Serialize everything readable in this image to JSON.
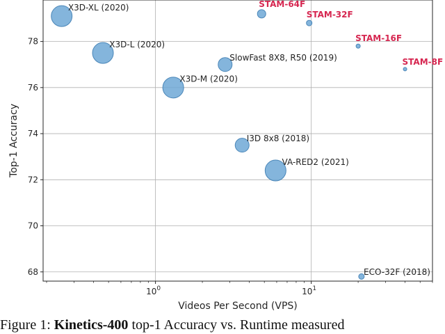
{
  "chart_data": {
    "type": "scatter",
    "title": "",
    "xlabel": "Videos Per Second (VPS)",
    "ylabel": "Top-1 Accuracy",
    "xscale": "log",
    "xlim": [
      0.19,
      60
    ],
    "ylim": [
      67.6,
      79.8
    ],
    "xticks": [
      {
        "value": 1,
        "base": "10",
        "exp": "0"
      },
      {
        "value": 10,
        "base": "10",
        "exp": "1"
      }
    ],
    "yticks": [
      68,
      70,
      72,
      74,
      76,
      78
    ],
    "grid": true,
    "legend": "none",
    "marker_color": "#6fa8d6",
    "highlight_color": "#d62650",
    "points": [
      {
        "label": "X3D-XL (2020)",
        "x": 0.25,
        "y": 79.1,
        "size": 15,
        "highlight": false
      },
      {
        "label": "X3D-L (2020)",
        "x": 0.46,
        "y": 77.5,
        "size": 15,
        "highlight": false
      },
      {
        "label": "X3D-M (2020)",
        "x": 1.3,
        "y": 76.0,
        "size": 15,
        "highlight": false
      },
      {
        "label": "SlowFast 8X8, R50 (2019)",
        "x": 2.8,
        "y": 77.0,
        "size": 10,
        "highlight": false
      },
      {
        "label": "I3D 8x8 (2018)",
        "x": 3.6,
        "y": 73.5,
        "size": 10,
        "highlight": false
      },
      {
        "label": "VA-RED2 (2021)",
        "x": 5.9,
        "y": 72.4,
        "size": 15,
        "highlight": false
      },
      {
        "label": "ECO-32F (2018)",
        "x": 21,
        "y": 67.8,
        "size": 4,
        "highlight": false
      },
      {
        "label": "STAM-64F",
        "x": 4.8,
        "y": 79.2,
        "size": 6,
        "highlight": true
      },
      {
        "label": "STAM-32F",
        "x": 9.7,
        "y": 78.8,
        "size": 4,
        "highlight": true
      },
      {
        "label": "STAM-16F",
        "x": 20,
        "y": 77.8,
        "size": 3,
        "highlight": true
      },
      {
        "label": "STAM-8F",
        "x": 40,
        "y": 76.8,
        "size": 2.5,
        "highlight": true
      }
    ]
  },
  "caption": {
    "prefix": "Figure 1:",
    "bold": "Kinetics-400",
    "suffix": "top-1 Accuracy vs. Runtime measured"
  }
}
